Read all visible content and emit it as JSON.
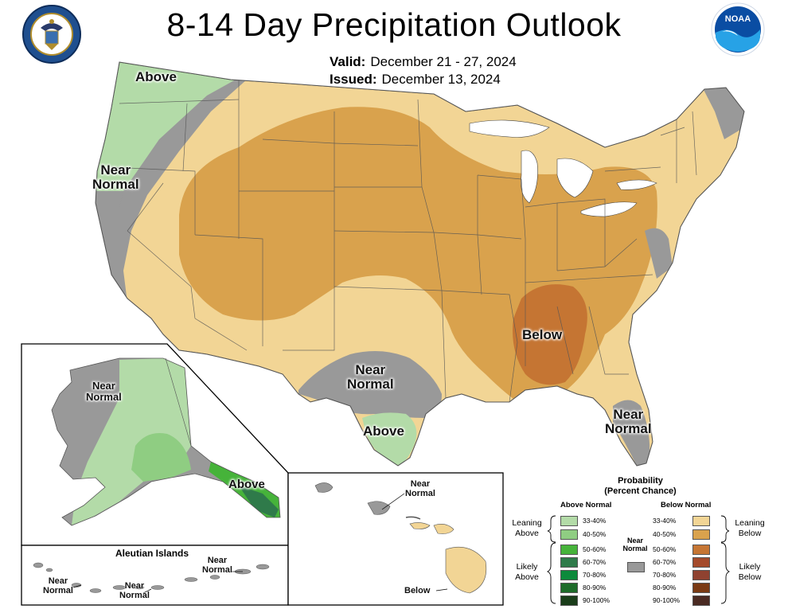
{
  "header": {
    "title": "8-14 Day Precipitation Outlook",
    "valid_label": "Valid:",
    "valid_value": "December 21 - 27, 2024",
    "issued_label": "Issued:",
    "issued_value": "December 13, 2024"
  },
  "logos": {
    "left": "department-of-commerce-seal",
    "right": "noaa-logo",
    "noaa_text": "NOAA"
  },
  "colors": {
    "above_33_40": "#b3dba8",
    "above_40_50": "#8fcd82",
    "above_50_60": "#46b33a",
    "above_60_70": "#2f7a4a",
    "above_70_80": "#0c8a3b",
    "above_80_90": "#1e6b2a",
    "above_90_100": "#1a3d1a",
    "below_33_40": "#f2d595",
    "below_40_50": "#d9a24d",
    "below_50_60": "#c57533",
    "below_60_70": "#a44a2b",
    "below_70_80": "#8f4230",
    "below_80_90": "#7a3a14",
    "below_90_100": "#4a2a22",
    "near_normal": "#999999"
  },
  "conus_labels": {
    "nw_above": "Above",
    "west_near_line1": "Near",
    "west_near_line2": "Normal",
    "se_below": "Below",
    "tx_near_line1": "Near",
    "tx_near_line2": "Normal",
    "tx_above": "Above",
    "fl_near_line1": "Near",
    "fl_near_line2": "Normal"
  },
  "alaska": {
    "near_line1": "Near",
    "near_line2": "Normal",
    "above": "Above",
    "aleutian_title": "Aleutian Islands",
    "aleut_a_line1": "Near",
    "aleut_a_line2": "Normal",
    "aleut_b_line1": "Near",
    "aleut_b_line2": "Normal",
    "aleut_c_line1": "Near",
    "aleut_c_line2": "Normal"
  },
  "hawaii": {
    "near_line1": "Near",
    "near_line2": "Normal",
    "below": "Below"
  },
  "legend": {
    "title_line1": "Probability",
    "title_line2": "(Percent Chance)",
    "above_header": "Above Normal",
    "below_header": "Below Normal",
    "leaning_above_line1": "Leaning",
    "leaning_above_line2": "Above",
    "likely_above_line1": "Likely",
    "likely_above_line2": "Above",
    "leaning_below_line1": "Leaning",
    "leaning_below_line2": "Below",
    "likely_below_line1": "Likely",
    "likely_below_line2": "Below",
    "near_normal_line1": "Near",
    "near_normal_line2": "Normal",
    "ranges": [
      "33-40%",
      "40-50%",
      "50-60%",
      "60-70%",
      "70-80%",
      "80-90%",
      "90-100%"
    ]
  }
}
